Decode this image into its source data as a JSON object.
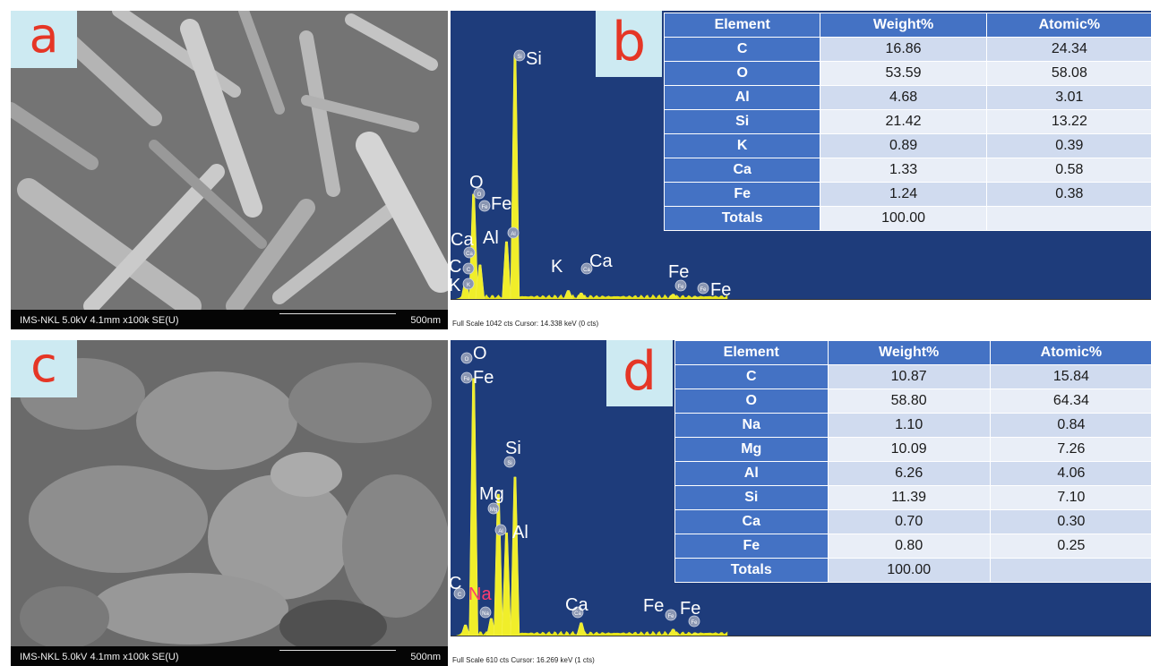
{
  "panels": {
    "a": {
      "letter": "a",
      "info": "IMS-NKL 5.0kV 4.1mm x100k SE(U)",
      "scale": "500nm"
    },
    "b": {
      "letter": "b",
      "footer": "Full Scale 1042 cts  Cursor: 14.338 keV (0 cts)",
      "kev_unit": "keV",
      "table": {
        "headers": [
          "Element",
          "Weight%",
          "Atomic%"
        ],
        "rows": [
          [
            "C",
            "16.86",
            "24.34"
          ],
          [
            "O",
            "53.59",
            "58.08"
          ],
          [
            "Al",
            "4.68",
            "3.01"
          ],
          [
            "Si",
            "21.42",
            "13.22"
          ],
          [
            "K",
            "0.89",
            "0.39"
          ],
          [
            "Ca",
            "1.33",
            "0.58"
          ],
          [
            "Fe",
            "1.24",
            "0.38"
          ],
          [
            "Totals",
            "100.00",
            ""
          ]
        ]
      }
    },
    "c": {
      "letter": "c",
      "info": "IMS-NKL 5.0kV 4.1mm x100k SE(U)",
      "scale": "500nm"
    },
    "d": {
      "letter": "d",
      "footer": "Full Scale 610 cts  Cursor: 16.269 keV (1 cts)",
      "kev_unit": "keV",
      "table": {
        "headers": [
          "Element",
          "Weight%",
          "Atomic%"
        ],
        "rows": [
          [
            "C",
            "10.87",
            "15.84"
          ],
          [
            "O",
            "58.80",
            "64.34"
          ],
          [
            "Na",
            "1.10",
            "0.84"
          ],
          [
            "Mg",
            "10.09",
            "7.26"
          ],
          [
            "Al",
            "6.26",
            "4.06"
          ],
          [
            "Si",
            "11.39",
            "7.10"
          ],
          [
            "Ca",
            "0.70",
            "0.30"
          ],
          [
            "Fe",
            "0.80",
            "0.25"
          ],
          [
            "Totals",
            "100.00",
            ""
          ]
        ]
      }
    }
  },
  "chart_data": [
    {
      "type": "line",
      "title": "",
      "xlabel": "keV",
      "xlim": [
        0,
        20
      ],
      "ylim": [
        0,
        1042
      ],
      "x_ticks": [
        "0",
        "1",
        "2",
        "3",
        "4",
        "5",
        "6",
        "7",
        "8",
        "9",
        "10",
        "11",
        "12",
        "13",
        "14",
        "15",
        "16",
        "17",
        "18",
        "19",
        "20"
      ],
      "peaks": [
        {
          "label": "C",
          "kev": 0.28,
          "value": 70
        },
        {
          "label": "O",
          "kev": 0.52,
          "value": 430
        },
        {
          "label": "Fe",
          "kev": 0.71,
          "value": 140
        },
        {
          "label": "Al",
          "kev": 1.49,
          "value": 235
        },
        {
          "label": "Si",
          "kev": 1.74,
          "value": 1000
        },
        {
          "label": "K",
          "kev": 3.31,
          "value": 35
        },
        {
          "label": "Ca",
          "kev": 3.69,
          "value": 25
        },
        {
          "label": "Fe",
          "kev": 6.4,
          "value": 20
        },
        {
          "label": "Fe",
          "kev": 7.06,
          "value": 8
        }
      ],
      "annotations": [
        "Si",
        "O",
        "Fe",
        "Ca",
        "Al",
        "C",
        "K",
        "K",
        "Ca",
        "Fe",
        "Fe"
      ]
    },
    {
      "type": "line",
      "title": "",
      "xlabel": "keV",
      "xlim": [
        0,
        20
      ],
      "ylim": [
        0,
        610
      ],
      "x_ticks": [
        "0",
        "1",
        "2",
        "3",
        "4",
        "5",
        "6",
        "7",
        "8",
        "9",
        "10",
        "11",
        "12",
        "13",
        "14",
        "15",
        "16",
        "17",
        "18",
        "19",
        "20"
      ],
      "peaks": [
        {
          "label": "C",
          "kev": 0.28,
          "value": 25
        },
        {
          "label": "O",
          "kev": 0.52,
          "value": 600
        },
        {
          "label": "Na",
          "kev": 1.04,
          "value": 40
        },
        {
          "label": "Mg",
          "kev": 1.25,
          "value": 330
        },
        {
          "label": "Al",
          "kev": 1.49,
          "value": 240
        },
        {
          "label": "Si",
          "kev": 1.74,
          "value": 370
        },
        {
          "label": "Ca",
          "kev": 3.69,
          "value": 30
        },
        {
          "label": "Fe",
          "kev": 6.4,
          "value": 15
        },
        {
          "label": "Fe",
          "kev": 7.06,
          "value": 6
        }
      ],
      "annotations": [
        "O",
        "Fe",
        "Si",
        "Mg",
        "Al",
        "C",
        "Na",
        "Ca",
        "Fe",
        "Fe"
      ]
    }
  ]
}
